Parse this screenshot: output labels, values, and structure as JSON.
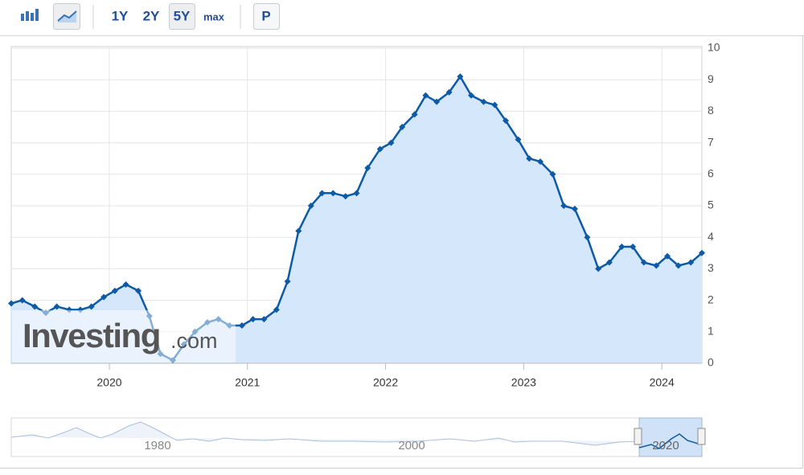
{
  "toolbar": {
    "ranges": [
      "1Y",
      "2Y",
      "5Y",
      "max"
    ],
    "print": "P"
  },
  "chart_data": {
    "type": "area",
    "x": [
      2019.29,
      2019.37,
      2019.46,
      2019.54,
      2019.62,
      2019.71,
      2019.79,
      2019.87,
      2019.96,
      2020.04,
      2020.12,
      2020.21,
      2020.29,
      2020.37,
      2020.46,
      2020.54,
      2020.62,
      2020.71,
      2020.79,
      2020.87,
      2020.96,
      2021.04,
      2021.12,
      2021.21,
      2021.29,
      2021.37,
      2021.46,
      2021.54,
      2021.62,
      2021.71,
      2021.79,
      2021.87,
      2021.96,
      2022.04,
      2022.12,
      2022.21,
      2022.29,
      2022.37,
      2022.46,
      2022.54,
      2022.62,
      2022.71,
      2022.79,
      2022.87,
      2022.96,
      2023.04,
      2023.12,
      2023.21,
      2023.29,
      2023.37,
      2023.46,
      2023.54,
      2023.62,
      2023.71,
      2023.79,
      2023.87,
      2023.96,
      2024.04,
      2024.12,
      2024.21,
      2024.29
    ],
    "values": [
      1.9,
      2.0,
      1.8,
      1.6,
      1.8,
      1.7,
      1.7,
      1.8,
      2.1,
      2.3,
      2.5,
      2.3,
      1.5,
      0.3,
      0.1,
      0.6,
      1.0,
      1.3,
      1.4,
      1.2,
      1.2,
      1.4,
      1.4,
      1.7,
      2.6,
      4.2,
      5.0,
      5.4,
      5.4,
      5.3,
      5.4,
      6.2,
      6.8,
      7.0,
      7.5,
      7.9,
      8.5,
      8.3,
      8.6,
      9.1,
      8.5,
      8.3,
      8.2,
      7.7,
      7.1,
      6.5,
      6.4,
      6.0,
      5.0,
      4.9,
      4.0,
      3.0,
      3.2,
      3.7,
      3.7,
      3.2,
      3.1,
      3.4,
      3.1,
      3.2,
      3.5
    ],
    "color": "#0d5aa7",
    "fill": "#d5e7fb",
    "xlim": [
      2019.29,
      2024.29
    ],
    "xticks": [
      2020,
      2021,
      2022,
      2023,
      2024
    ],
    "ylim": [
      0,
      10
    ],
    "yticks": [
      0,
      1,
      2,
      3,
      4,
      5,
      6,
      7,
      8,
      9,
      10
    ],
    "grid": true,
    "watermark": {
      "brand": "Investing",
      "suffix": ".com"
    }
  },
  "navigator": {
    "labels": [
      "1980",
      "2000",
      "2020"
    ]
  }
}
